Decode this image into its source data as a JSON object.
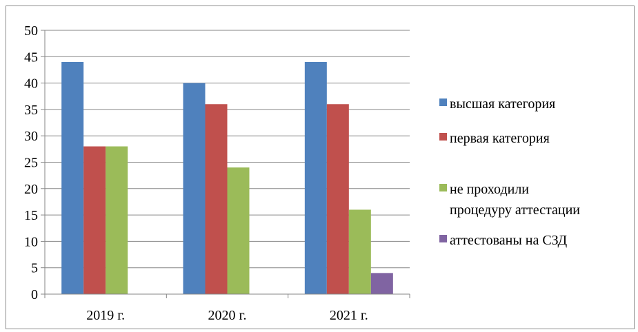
{
  "chart_data": {
    "type": "bar",
    "categories": [
      "2019 г.",
      "2020 г.",
      "2021 г."
    ],
    "series": [
      {
        "name": "высшая категория",
        "values": [
          44,
          40,
          44
        ],
        "color": "#4f81bd"
      },
      {
        "name": "первая категория",
        "values": [
          28,
          36,
          36
        ],
        "color": "#c0504d"
      },
      {
        "name": "не проходили процедуру аттестации",
        "values": [
          28,
          24,
          16
        ],
        "color": "#9bbb59"
      },
      {
        "name": "аттестованы на СЗД",
        "values": [
          0,
          0,
          4
        ],
        "color": "#8064a2"
      }
    ],
    "legend_lines": [
      [
        "высшая категория"
      ],
      [
        "первая категория"
      ],
      [
        "не проходили",
        "процедуру аттестации"
      ],
      [
        "аттестованы на СЗД"
      ]
    ],
    "yticks": [
      "0",
      "5",
      "10",
      "15",
      "20",
      "25",
      "30",
      "35",
      "40",
      "45",
      "50"
    ],
    "ylim": [
      0,
      50
    ],
    "grid": true,
    "legend_position": "right",
    "title": "",
    "xlabel": "",
    "ylabel": ""
  }
}
